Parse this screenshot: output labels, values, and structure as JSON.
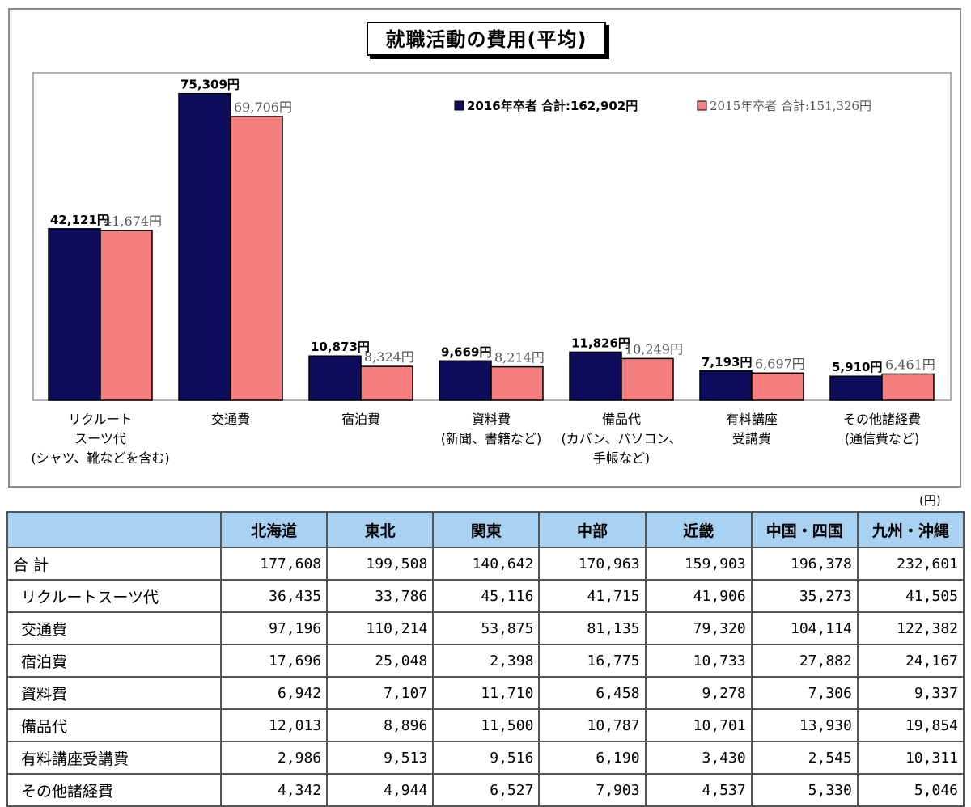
{
  "chart_data": {
    "type": "bar",
    "title": "就職活動の費用(平均)",
    "categories": [
      [
        "リクルート",
        "スーツ代",
        "(シャツ、靴などを含む)"
      ],
      [
        "交通費"
      ],
      [
        "宿泊費"
      ],
      [
        "資料費",
        "(新聞、書籍など)"
      ],
      [
        "備品代",
        "(カバン、パソコン、",
        "手帳など)"
      ],
      [
        "有料講座",
        "受講費"
      ],
      [
        "その他諸経費",
        "(通信費など)"
      ]
    ],
    "series": [
      {
        "name": "2016年卒者 合計:162,902円",
        "color": "#0d0d5c",
        "values": [
          42121,
          75309,
          10873,
          9669,
          11826,
          7193,
          5910
        ],
        "labels": [
          "42,121円",
          "75,309円",
          "10,873円",
          "9,669円",
          "11,826円",
          "7,193円",
          "5,910円"
        ]
      },
      {
        "name": "2015年卒者 合計:151,326円",
        "color": "#f57f7f",
        "values": [
          41674,
          69706,
          8324,
          8214,
          10249,
          6697,
          6461
        ],
        "labels": [
          "41,674円",
          "69,706円",
          "8,324円",
          "8,214円",
          "10,249円",
          "6,697円",
          "6,461円"
        ]
      }
    ],
    "legend": [
      "2016年卒者  合計:162,902円",
      "2015年卒者  合計:151,326円"
    ],
    "legend_position": "top-right",
    "ylim": [
      0,
      80000
    ],
    "grid": false
  },
  "table": {
    "unit": "(円)",
    "headers": [
      "",
      "北海道",
      "東北",
      "関東",
      "中部",
      "近畿",
      "中国・四国",
      "九州・沖縄"
    ],
    "rows": [
      {
        "label": "合 計",
        "indent": false,
        "values": [
          "177,608",
          "199,508",
          "140,642",
          "170,963",
          "159,903",
          "196,378",
          "232,601"
        ]
      },
      {
        "label": "リクルートスーツ代",
        "indent": true,
        "values": [
          "36,435",
          "33,786",
          "45,116",
          "41,715",
          "41,906",
          "35,273",
          "41,505"
        ]
      },
      {
        "label": "交通費",
        "indent": true,
        "values": [
          "97,196",
          "110,214",
          "53,875",
          "81,135",
          "79,320",
          "104,114",
          "122,382"
        ]
      },
      {
        "label": "宿泊費",
        "indent": true,
        "values": [
          "17,696",
          "25,048",
          "2,398",
          "16,775",
          "10,733",
          "27,882",
          "24,167"
        ]
      },
      {
        "label": "資料費",
        "indent": true,
        "values": [
          "6,942",
          "7,107",
          "11,710",
          "6,458",
          "9,278",
          "7,306",
          "9,337"
        ]
      },
      {
        "label": "備品代",
        "indent": true,
        "values": [
          "12,013",
          "8,896",
          "11,500",
          "10,787",
          "10,701",
          "13,930",
          "19,854"
        ]
      },
      {
        "label": "有料講座受講費",
        "indent": true,
        "values": [
          "2,986",
          "9,513",
          "9,516",
          "6,190",
          "3,430",
          "2,545",
          "10,311"
        ]
      },
      {
        "label": "その他諸経費",
        "indent": true,
        "values": [
          "4,342",
          "4,944",
          "6,527",
          "7,903",
          "4,537",
          "5,330",
          "5,046"
        ]
      }
    ]
  }
}
